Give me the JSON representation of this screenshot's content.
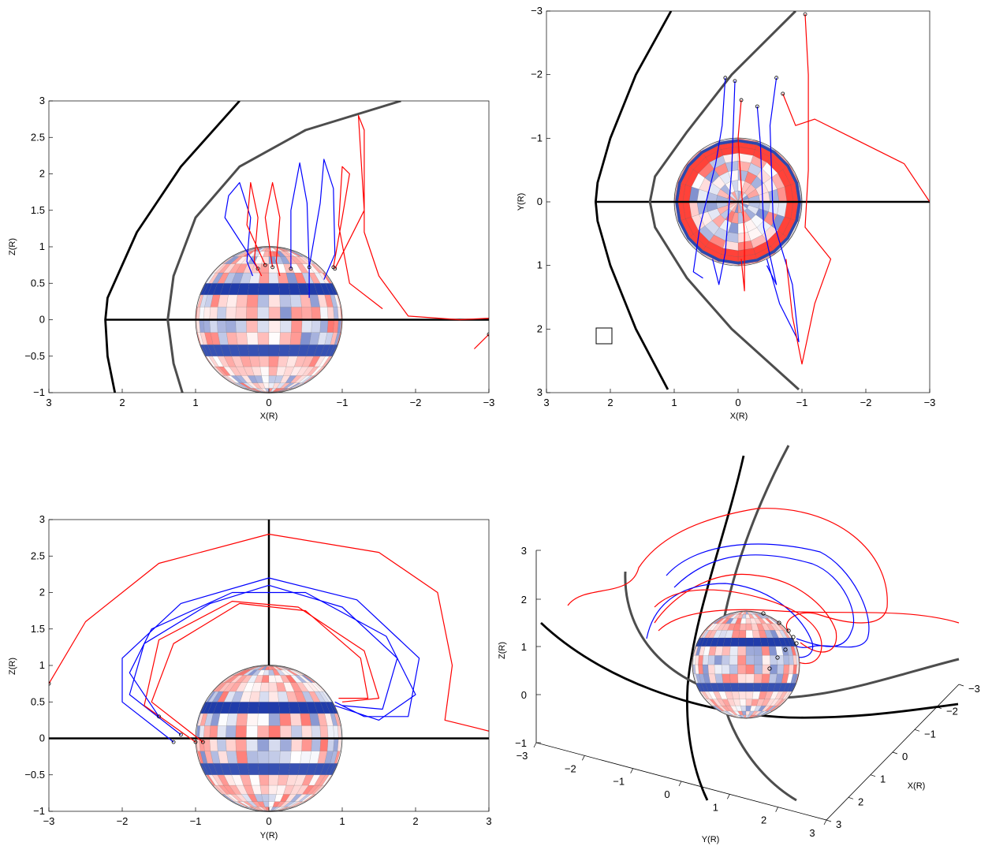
{
  "figure": {
    "colors": {
      "field_line_a": "#ff0000",
      "field_line_b": "#0000ff",
      "bow_shock": "#000000",
      "magnetopause": "#4d4d4d",
      "axis_line": "#000000",
      "sphere_positive": "#cc2222",
      "sphere_negative": "#1a2a9a"
    }
  },
  "chart_data": [
    {
      "type": "line",
      "panel": "top-left",
      "view": "X-Z projection",
      "xlabel": "X(R)",
      "ylabel": "Z(R)",
      "xlim": [
        3,
        -3
      ],
      "ylim": [
        -1,
        3
      ],
      "xticks": [
        "3",
        "2",
        "1",
        "0",
        "−1",
        "−2",
        "−3"
      ],
      "yticks": [
        "−1",
        "−0.5",
        "0",
        "0.5",
        "1",
        "1.5",
        "2",
        "2.5",
        "3"
      ],
      "planet_radius": 1,
      "series": [
        {
          "kind": "bow_shock",
          "points": [
            [
              0.4,
              3.0
            ],
            [
              1.2,
              2.1
            ],
            [
              1.8,
              1.2
            ],
            [
              2.2,
              0.3
            ],
            [
              2.23,
              0
            ],
            [
              2.2,
              -0.5
            ],
            [
              2.1,
              -1.0
            ]
          ]
        },
        {
          "kind": "magnetopause",
          "points": [
            [
              -1.8,
              3.0
            ],
            [
              -0.5,
              2.6
            ],
            [
              0.4,
              2.1
            ],
            [
              1.0,
              1.4
            ],
            [
              1.3,
              0.6
            ],
            [
              1.38,
              0
            ],
            [
              1.3,
              -0.6
            ],
            [
              1.18,
              -1.0
            ]
          ]
        },
        {
          "kind": "field_line_b",
          "points": [
            [
              0.15,
              0.7
            ],
            [
              0.6,
              1.4
            ],
            [
              0.55,
              1.7
            ],
            [
              0.4,
              1.88
            ],
            [
              0.25,
              1.4
            ],
            [
              0.3,
              0.8
            ],
            [
              0.22,
              0.6
            ]
          ]
        },
        {
          "kind": "field_line_a",
          "points": [
            [
              0.05,
              0.75
            ],
            [
              0.3,
              1.3
            ],
            [
              0.25,
              1.88
            ],
            [
              0.15,
              1.4
            ],
            [
              0.2,
              0.8
            ],
            [
              0.1,
              0.6
            ]
          ]
        },
        {
          "kind": "field_line_a",
          "points": [
            [
              -0.05,
              0.72
            ],
            [
              0.05,
              1.4
            ],
            [
              -0.05,
              1.88
            ],
            [
              -0.15,
              1.4
            ],
            [
              -0.1,
              0.8
            ],
            [
              -0.15,
              0.6
            ]
          ]
        },
        {
          "kind": "field_line_b",
          "points": [
            [
              -0.3,
              0.7
            ],
            [
              -0.3,
              1.5
            ],
            [
              -0.42,
              2.15
            ],
            [
              -0.52,
              1.6
            ],
            [
              -0.55,
              0.7
            ],
            [
              -0.55,
              0.3
            ]
          ]
        },
        {
          "kind": "field_line_b",
          "points": [
            [
              -0.55,
              0.72
            ],
            [
              -0.7,
              1.6
            ],
            [
              -0.75,
              2.2
            ],
            [
              -0.88,
              1.8
            ],
            [
              -0.9,
              0.9
            ],
            [
              -0.75,
              0.55
            ]
          ]
        },
        {
          "kind": "field_line_a",
          "points": [
            [
              -0.88,
              0.72
            ],
            [
              -1.0,
              1.4
            ],
            [
              -1.1,
              2.0
            ],
            [
              -1.0,
              2.1
            ],
            [
              -0.95,
              1.3
            ],
            [
              -1.1,
              0.5
            ],
            [
              -1.55,
              0.15
            ]
          ]
        },
        {
          "kind": "field_line_a",
          "points": [
            [
              -0.9,
              0.7
            ],
            [
              -1.3,
              1.5
            ],
            [
              -1.22,
              2.8
            ],
            [
              -1.3,
              2.6
            ],
            [
              -1.3,
              1.2
            ],
            [
              -1.5,
              0.6
            ],
            [
              -1.9,
              0.05
            ],
            [
              -2.6,
              0.0
            ],
            [
              -3.0,
              0.02
            ]
          ]
        },
        {
          "kind": "field_line_a",
          "points": [
            [
              -3.0,
              -0.2
            ],
            [
              -2.85,
              -0.35
            ],
            [
              -2.8,
              -0.4
            ]
          ]
        }
      ]
    },
    {
      "type": "line",
      "panel": "top-right",
      "view": "X-Y projection",
      "xlabel": "X(R)",
      "ylabel": "Y(R)",
      "xlim": [
        3,
        -3
      ],
      "ylim": [
        -3,
        3
      ],
      "xticks": [
        "3",
        "2",
        "1",
        "0",
        "−1",
        "−2",
        "−3"
      ],
      "yticks": [
        "−3",
        "−2",
        "−1",
        "0",
        "1",
        "2",
        "3"
      ],
      "planet_radius": 1,
      "series": [
        {
          "kind": "bow_shock",
          "points": [
            [
              1.05,
              -3.0
            ],
            [
              1.6,
              -2.0
            ],
            [
              2.0,
              -1.0
            ],
            [
              2.2,
              -0.3
            ],
            [
              2.23,
              0
            ],
            [
              2.2,
              0.3
            ],
            [
              2.0,
              1.0
            ],
            [
              1.6,
              2.0
            ],
            [
              1.1,
              2.95
            ]
          ]
        },
        {
          "kind": "magnetopause",
          "points": [
            [
              -0.9,
              -3.0
            ],
            [
              0.1,
              -2.0
            ],
            [
              0.8,
              -1.1
            ],
            [
              1.3,
              -0.4
            ],
            [
              1.38,
              0
            ],
            [
              1.3,
              0.4
            ],
            [
              0.8,
              1.2
            ],
            [
              0.1,
              2.0
            ],
            [
              -0.95,
              2.95
            ]
          ]
        },
        {
          "kind": "field_line_b",
          "points": [
            [
              0.2,
              -1.95
            ],
            [
              0.25,
              -1.2
            ],
            [
              0.35,
              -0.6
            ],
            [
              0.6,
              0.4
            ],
            [
              0.7,
              1.1
            ],
            [
              0.55,
              1.2
            ]
          ]
        },
        {
          "kind": "field_line_b",
          "points": [
            [
              0.05,
              -1.9
            ],
            [
              0.1,
              -0.5
            ],
            [
              0.2,
              0.8
            ],
            [
              0.3,
              1.3
            ],
            [
              0.4,
              0.9
            ]
          ]
        },
        {
          "kind": "field_line_a",
          "points": [
            [
              -0.05,
              -1.6
            ],
            [
              0.0,
              -1.0
            ],
            [
              -0.1,
              0.5
            ],
            [
              -0.1,
              1.4
            ],
            [
              -0.05,
              0.9
            ]
          ]
        },
        {
          "kind": "field_line_b",
          "points": [
            [
              -0.3,
              -1.5
            ],
            [
              -0.35,
              -0.9
            ],
            [
              -0.4,
              0.4
            ],
            [
              -0.6,
              1.3
            ],
            [
              -0.45,
              1.0
            ]
          ]
        },
        {
          "kind": "field_line_b",
          "points": [
            [
              -0.6,
              -1.95
            ],
            [
              -0.5,
              -1.2
            ],
            [
              -0.55,
              0.3
            ],
            [
              -0.85,
              1.3
            ],
            [
              -0.95,
              2.2
            ],
            [
              -0.65,
              1.6
            ],
            [
              -0.45,
              0.9
            ]
          ]
        },
        {
          "kind": "field_line_a",
          "points": [
            [
              -0.7,
              -1.7
            ],
            [
              -0.9,
              -1.2
            ],
            [
              -1.2,
              -1.3
            ],
            [
              -1.8,
              -1.0
            ],
            [
              -2.6,
              -0.6
            ],
            [
              -3.0,
              0.0
            ]
          ]
        },
        {
          "kind": "field_line_a",
          "points": [
            [
              -1.05,
              -2.95
            ],
            [
              -1.1,
              -2.0
            ],
            [
              -1.1,
              -0.5
            ],
            [
              -1.05,
              0.4
            ],
            [
              -1.45,
              0.9
            ],
            [
              -1.2,
              1.6
            ],
            [
              -1.0,
              2.55
            ],
            [
              -0.85,
              1.8
            ],
            [
              -0.75,
              0.9
            ]
          ]
        }
      ]
    },
    {
      "type": "line",
      "panel": "bottom-left",
      "view": "Y-Z projection",
      "xlabel": "Y(R)",
      "ylabel": "Z(R)",
      "xlim": [
        -3,
        3
      ],
      "ylim": [
        -1,
        3
      ],
      "xticks": [
        "−3",
        "−2",
        "−1",
        "0",
        "1",
        "2",
        "3"
      ],
      "yticks": [
        "−1",
        "−0.5",
        "0",
        "0.5",
        "1",
        "1.5",
        "2",
        "2.5",
        "3"
      ],
      "planet_radius": 1,
      "series": [
        {
          "kind": "field_line_a",
          "points": [
            [
              -3.0,
              0.75
            ],
            [
              -2.5,
              1.6
            ],
            [
              -1.5,
              2.4
            ],
            [
              0.0,
              2.8
            ],
            [
              1.5,
              2.55
            ],
            [
              2.3,
              2.0
            ],
            [
              2.5,
              1.0
            ],
            [
              2.4,
              0.25
            ],
            [
              2.8,
              0.15
            ],
            [
              3.0,
              0.1
            ]
          ]
        },
        {
          "kind": "field_line_b",
          "points": [
            [
              -1.3,
              -0.05
            ],
            [
              -2.0,
              0.5
            ],
            [
              -2.0,
              1.1
            ],
            [
              -1.2,
              1.85
            ],
            [
              0.0,
              2.2
            ],
            [
              1.2,
              1.9
            ],
            [
              2.05,
              1.1
            ],
            [
              1.9,
              0.3
            ],
            [
              1.3,
              0.3
            ],
            [
              0.9,
              0.5
            ]
          ]
        },
        {
          "kind": "field_line_b",
          "points": [
            [
              -1.2,
              0.05
            ],
            [
              -1.9,
              0.6
            ],
            [
              -1.7,
              1.3
            ],
            [
              -0.8,
              1.85
            ],
            [
              0.0,
              2.1
            ],
            [
              1.0,
              1.8
            ],
            [
              1.75,
              1.1
            ],
            [
              1.55,
              0.4
            ],
            [
              1.0,
              0.45
            ]
          ]
        },
        {
          "kind": "field_line_a",
          "points": [
            [
              -1.0,
              -0.05
            ],
            [
              -1.7,
              0.45
            ],
            [
              -1.5,
              1.35
            ],
            [
              -0.5,
              1.88
            ],
            [
              0.4,
              1.8
            ],
            [
              1.3,
              1.2
            ],
            [
              1.5,
              0.55
            ],
            [
              1.0,
              0.5
            ]
          ]
        },
        {
          "kind": "field_line_a",
          "points": [
            [
              -0.9,
              -0.05
            ],
            [
              -1.6,
              0.5
            ],
            [
              -1.3,
              1.3
            ],
            [
              -0.4,
              1.85
            ],
            [
              0.5,
              1.75
            ],
            [
              1.25,
              1.1
            ],
            [
              1.35,
              0.55
            ],
            [
              0.95,
              0.55
            ]
          ]
        },
        {
          "kind": "field_line_b",
          "points": [
            [
              -1.5,
              0.3
            ],
            [
              -1.9,
              0.9
            ],
            [
              -1.6,
              1.5
            ],
            [
              -0.5,
              2.0
            ],
            [
              0.5,
              2.0
            ],
            [
              1.6,
              1.4
            ],
            [
              2.0,
              0.6
            ],
            [
              1.5,
              0.25
            ],
            [
              0.9,
              0.45
            ]
          ]
        }
      ]
    },
    {
      "type": "line",
      "panel": "bottom-right",
      "view": "3D perspective",
      "xlabel": "X(R)",
      "ylabel": "Y(R)",
      "zlabel": "Z(R)",
      "xticks": [
        "−3",
        "−2",
        "−1",
        "0",
        "1",
        "2",
        "3"
      ],
      "yticks": [
        "−3",
        "−2",
        "−1",
        "0",
        "1",
        "2",
        "3"
      ],
      "zticks": [
        "−1",
        "0",
        "1",
        "2",
        "3"
      ],
      "planet_radius": 1
    }
  ]
}
